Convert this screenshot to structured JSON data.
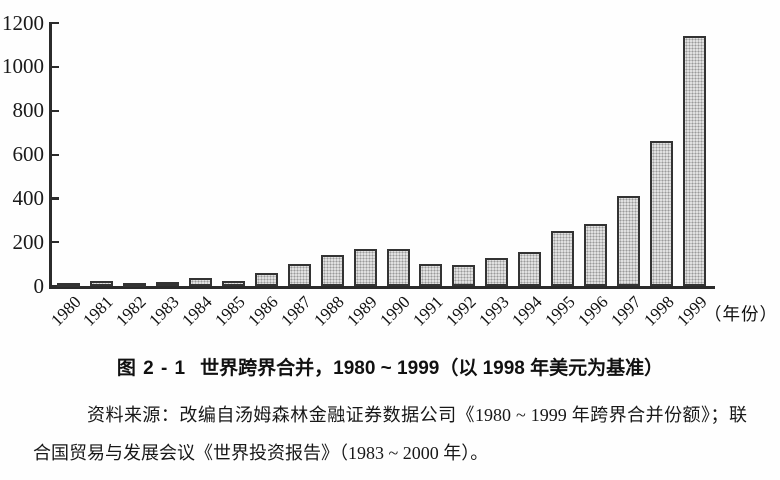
{
  "chart_data": {
    "type": "bar",
    "title": "图 2 - 1 世界跨界合并，1980 ~ 1999（以 1998 年美元为基准）",
    "categories": [
      "1980",
      "1981",
      "1982",
      "1983",
      "1984",
      "1985",
      "1986",
      "1987",
      "1988",
      "1989",
      "1990",
      "1991",
      "1992",
      "1993",
      "1994",
      "1995",
      "1996",
      "1997",
      "1998",
      "1999"
    ],
    "values": [
      10,
      25,
      10,
      20,
      35,
      25,
      60,
      100,
      140,
      170,
      170,
      100,
      95,
      130,
      155,
      250,
      285,
      410,
      660,
      1140
    ],
    "xlabel": "（年份）",
    "ylabel": "",
    "ylim": [
      0,
      1200
    ],
    "yticks": [
      0,
      200,
      400,
      600,
      800,
      1000,
      1200
    ],
    "grid": false,
    "legend": "none",
    "bar_fill": "#e2e2e2",
    "bar_border": "#333333",
    "axis_color": "#2b2b2b"
  },
  "caption": {
    "figure_label": "图 2 - 1",
    "title": "世界跨界合并，1980 ~ 1999（以 1998 年美元为基准）"
  },
  "source": {
    "text": "资料来源：改编自汤姆森林金融证券数据公司《1980 ~ 1999 年跨界合并份额》；联合国贸易与发展会议《世界投资报告》（1983 ~ 2000 年）。"
  }
}
